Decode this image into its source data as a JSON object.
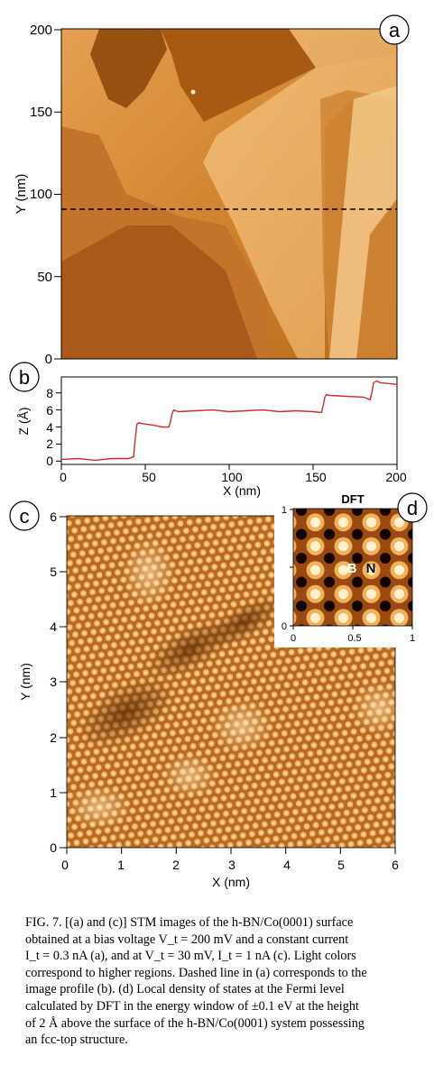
{
  "panels": {
    "a": {
      "label": "a",
      "ylabel": "Y (nm)",
      "yticks": [
        "200",
        "150",
        "100",
        "50",
        "0"
      ]
    },
    "b": {
      "label": "b",
      "ylabel": "Z (Å)",
      "xlabel": "X (nm)",
      "yticks": [
        "8",
        "6",
        "4",
        "2",
        "0"
      ],
      "xticks": [
        "0",
        "50",
        "100",
        "150",
        "200"
      ]
    },
    "c": {
      "label": "c",
      "ylabel": "Y (nm)",
      "xlabel": "X (nm)",
      "yticks": [
        "6",
        "5",
        "4",
        "3",
        "2",
        "1",
        "0"
      ],
      "xticks": [
        "0",
        "1",
        "2",
        "3",
        "4",
        "5",
        "6"
      ]
    },
    "d": {
      "label": "d",
      "title": "DFT",
      "atom_b": "B",
      "atom_n": "N",
      "yticks": [
        "1",
        "0"
      ],
      "xticks": [
        "0",
        "0.5",
        "1"
      ]
    }
  },
  "chart_data": {
    "type": "line",
    "title": "",
    "xlabel": "X (nm)",
    "ylabel": "Z (Å)",
    "xlim": [
      0,
      200
    ],
    "ylim": [
      0,
      9.5
    ],
    "series": [
      {
        "color": "#d42a2a",
        "x": [
          0,
          10,
          20,
          30,
          40,
          43,
          44,
          45,
          46,
          48,
          55,
          60,
          64,
          65,
          66,
          67,
          68,
          70,
          80,
          90,
          100,
          110,
          120,
          130,
          140,
          150,
          155,
          156,
          157,
          158,
          160,
          170,
          180,
          184,
          185,
          186,
          188,
          190,
          195,
          200
        ],
        "y": [
          0.2,
          0.3,
          0.1,
          0.3,
          0.3,
          0.5,
          2.5,
          4.3,
          4.5,
          4.4,
          4.2,
          4.0,
          4.0,
          4.6,
          5.6,
          6.0,
          5.9,
          5.8,
          5.9,
          6.0,
          5.8,
          5.9,
          6.0,
          5.8,
          5.9,
          5.8,
          5.7,
          6.5,
          7.5,
          7.8,
          7.7,
          7.6,
          7.5,
          7.2,
          8.0,
          9.2,
          9.4,
          9.2,
          9.1,
          9.0
        ]
      }
    ]
  },
  "caption": {
    "lines": [
      "FIG. 7.  [(a) and (c)] STM images of the h-BN/Co(0001) surface",
      "obtained at a bias voltage V_t = 200 mV and a constant current",
      "I_t = 0.3 nA (a), and at V_t = 30 mV, I_t = 1 nA (c). Light colors",
      "correspond to higher regions. Dashed line in (a) corresponds to the",
      "image profile (b). (d) Local density of states at the Fermi level",
      "calculated by DFT in the energy window of ±0.1 eV at the height",
      "of 2 Å above the surface of the h-BN/Co(0001) system possessing",
      "an fcc-top structure."
    ]
  }
}
